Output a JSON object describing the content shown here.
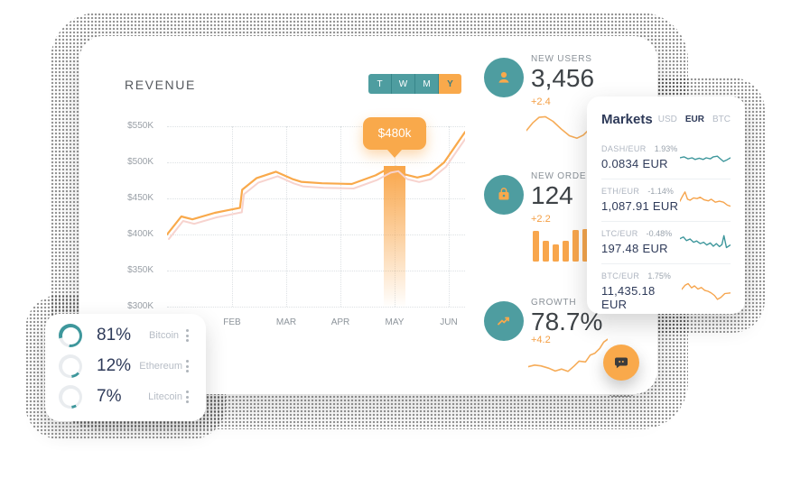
{
  "revenue": {
    "title": "REVENUE",
    "range_buttons": [
      {
        "label": "T",
        "active": false
      },
      {
        "label": "W",
        "active": false
      },
      {
        "label": "M",
        "active": false
      },
      {
        "label": "Y",
        "active": true
      }
    ],
    "tooltip": "$480k",
    "y_labels": [
      "$550K",
      "$500K",
      "$450K",
      "$400K",
      "$350K",
      "$300K"
    ],
    "x_labels": [
      "FEB",
      "MAR",
      "APR",
      "MAY",
      "JUN"
    ]
  },
  "chart_data": {
    "type": "line",
    "title": "REVENUE",
    "x_tick_labels": [
      "FEB",
      "MAR",
      "APR",
      "MAY",
      "JUN"
    ],
    "y_tick_labels": [
      "$550K",
      "$500K",
      "$450K",
      "$400K",
      "$350K",
      "$300K"
    ],
    "ylim_thousand_dollars": [
      300,
      550
    ],
    "highlight": {
      "month": "MAY",
      "label": "$480k"
    },
    "series": [
      {
        "name": "revenue",
        "color": "#F9A94B",
        "points": [
          [
            0,
            400
          ],
          [
            0.048,
            425
          ],
          [
            0.085,
            421
          ],
          [
            0.16,
            430
          ],
          [
            0.245,
            437
          ],
          [
            0.252,
            462
          ],
          [
            0.3,
            478
          ],
          [
            0.365,
            487
          ],
          [
            0.42,
            477
          ],
          [
            0.45,
            473
          ],
          [
            0.52,
            471
          ],
          [
            0.62,
            470
          ],
          [
            0.7,
            482
          ],
          [
            0.745,
            492
          ],
          [
            0.77,
            494
          ],
          [
            0.8,
            483
          ],
          [
            0.84,
            479
          ],
          [
            0.88,
            483
          ],
          [
            0.93,
            500
          ],
          [
            1,
            542
          ]
        ]
      },
      {
        "name": "revenue-shadow",
        "color": "#F7D3CE",
        "derived": "offset"
      }
    ],
    "new_orders_bars": [
      0.85,
      0.57,
      0.47,
      0.57,
      0.88,
      0.9
    ],
    "new_users_spark": [
      [
        0,
        0.55
      ],
      [
        0.1,
        0.3
      ],
      [
        0.2,
        0.12
      ],
      [
        0.3,
        0.1
      ],
      [
        0.42,
        0.25
      ],
      [
        0.55,
        0.5
      ],
      [
        0.68,
        0.72
      ],
      [
        0.8,
        0.8
      ],
      [
        0.9,
        0.7
      ],
      [
        1,
        0.5
      ]
    ],
    "growth_spark": [
      [
        0,
        0.74
      ],
      [
        0.08,
        0.7
      ],
      [
        0.16,
        0.72
      ],
      [
        0.26,
        0.78
      ],
      [
        0.34,
        0.85
      ],
      [
        0.42,
        0.8
      ],
      [
        0.5,
        0.86
      ],
      [
        0.58,
        0.72
      ],
      [
        0.64,
        0.6
      ],
      [
        0.72,
        0.62
      ],
      [
        0.78,
        0.45
      ],
      [
        0.84,
        0.4
      ],
      [
        0.9,
        0.28
      ],
      [
        0.95,
        0.12
      ],
      [
        1,
        0.05
      ]
    ],
    "markets_sparks": [
      [
        [
          0,
          0.5
        ],
        [
          0.08,
          0.45
        ],
        [
          0.16,
          0.55
        ],
        [
          0.24,
          0.5
        ],
        [
          0.3,
          0.58
        ],
        [
          0.38,
          0.52
        ],
        [
          0.46,
          0.58
        ],
        [
          0.52,
          0.5
        ],
        [
          0.6,
          0.55
        ],
        [
          0.66,
          0.45
        ],
        [
          0.74,
          0.42
        ],
        [
          0.8,
          0.55
        ],
        [
          0.86,
          0.68
        ],
        [
          0.93,
          0.6
        ],
        [
          1,
          0.5
        ]
      ],
      [
        [
          0,
          0.55
        ],
        [
          0.05,
          0.3
        ],
        [
          0.1,
          0.08
        ],
        [
          0.15,
          0.45
        ],
        [
          0.2,
          0.5
        ],
        [
          0.27,
          0.38
        ],
        [
          0.34,
          0.42
        ],
        [
          0.4,
          0.35
        ],
        [
          0.48,
          0.48
        ],
        [
          0.56,
          0.53
        ],
        [
          0.62,
          0.45
        ],
        [
          0.7,
          0.6
        ],
        [
          0.78,
          0.55
        ],
        [
          0.86,
          0.6
        ],
        [
          0.94,
          0.75
        ],
        [
          1,
          0.8
        ]
      ],
      [
        [
          0,
          0.3
        ],
        [
          0.07,
          0.22
        ],
        [
          0.13,
          0.4
        ],
        [
          0.2,
          0.32
        ],
        [
          0.27,
          0.48
        ],
        [
          0.33,
          0.42
        ],
        [
          0.4,
          0.55
        ],
        [
          0.47,
          0.48
        ],
        [
          0.53,
          0.62
        ],
        [
          0.6,
          0.52
        ],
        [
          0.66,
          0.68
        ],
        [
          0.72,
          0.55
        ],
        [
          0.78,
          0.7
        ],
        [
          0.83,
          0.6
        ],
        [
          0.87,
          0.15
        ],
        [
          0.92,
          0.75
        ],
        [
          1,
          0.62
        ]
      ],
      [
        [
          0,
          0.4
        ],
        [
          0.07,
          0.18
        ],
        [
          0.13,
          0.1
        ],
        [
          0.2,
          0.32
        ],
        [
          0.26,
          0.22
        ],
        [
          0.33,
          0.38
        ],
        [
          0.4,
          0.3
        ],
        [
          0.47,
          0.45
        ],
        [
          0.54,
          0.5
        ],
        [
          0.6,
          0.58
        ],
        [
          0.67,
          0.72
        ],
        [
          0.73,
          0.92
        ],
        [
          0.8,
          0.82
        ],
        [
          0.88,
          0.62
        ],
        [
          1,
          0.58
        ]
      ]
    ]
  },
  "stats": [
    {
      "label": "NEW USERS",
      "value": "3,456",
      "change": "+2.4",
      "icon": "user-icon"
    },
    {
      "label": "NEW ORDERS",
      "value": "124",
      "change": "+2.2",
      "icon": "bag-icon"
    },
    {
      "label": "GROWTH",
      "value": "78.7%",
      "change": "+4.2",
      "icon": "trend-up-icon"
    }
  ],
  "markets": {
    "title": "Markets",
    "tabs": [
      {
        "label": "USD",
        "active": false
      },
      {
        "label": "EUR",
        "active": true
      },
      {
        "label": "BTC",
        "active": false
      }
    ],
    "rows": [
      {
        "pair": "DASH/EUR",
        "change": "1.93%",
        "value": "0.0834 EUR",
        "spark_color": "#3E979C"
      },
      {
        "pair": "ETH/EUR",
        "change": "-1.14%",
        "value": "1,087.91 EUR",
        "spark_color": "#F6A44C"
      },
      {
        "pair": "LTC/EUR",
        "change": "-0.48%",
        "value": "197.48 EUR",
        "spark_color": "#3E979C"
      },
      {
        "pair": "BTC/EUR",
        "change": "1.75%",
        "value": "11,435.18 EUR",
        "spark_color": "#F6A44C"
      }
    ]
  },
  "portfolio": {
    "items": [
      {
        "percent": "81%",
        "name": "Bitcoin"
      },
      {
        "percent": "12%",
        "name": "Ethereum"
      },
      {
        "percent": "7%",
        "name": "Litecoin"
      }
    ]
  },
  "colors": {
    "teal": "#4E9DA0",
    "orange": "#F9A94B",
    "navy": "#2E3A59"
  }
}
